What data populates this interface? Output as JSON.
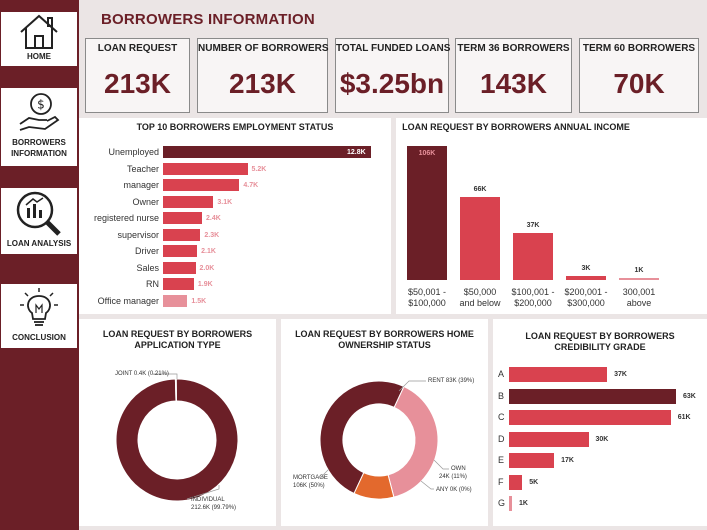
{
  "nav": {
    "home": "HOME",
    "borrowers": "BORROWERS INFORMATION",
    "loan_analysis": "LOAN ANALYSIS",
    "conclusion": "CONCLUSION"
  },
  "header": {
    "title": "BORROWERS INFORMATION"
  },
  "kpis": [
    {
      "label": "LOAN REQUEST",
      "value": "213K"
    },
    {
      "label": "NUMBER OF BORROWERS",
      "value": "213K"
    },
    {
      "label": "TOTAL FUNDED LOANS",
      "value": "$3.25bn"
    },
    {
      "label": "TERM 36 BORROWERS",
      "value": "143K"
    },
    {
      "label": "TERM 60 BORROWERS",
      "value": "70K"
    }
  ],
  "colors": {
    "dark": "#6b1f27",
    "mid": "#d9424f",
    "light": "#e7909a",
    "orange": "#e3692d",
    "sidebar": "#6b1f27"
  },
  "chart_data": [
    {
      "type": "bar",
      "orientation": "horizontal",
      "title": "TOP 10 BORROWERS EMPLOYMENT STATUS",
      "categories": [
        "Unemployed",
        "Teacher",
        "manager",
        "Owner",
        "registered nurse",
        "supervisor",
        "Driver",
        "Sales",
        "RN",
        "Office manager"
      ],
      "values": [
        12.8,
        5.2,
        4.7,
        3.1,
        2.4,
        2.3,
        2.1,
        2.0,
        1.9,
        1.5
      ],
      "labels": [
        "12.8K",
        "5.2K",
        "4.7K",
        "3.1K",
        "2.4K",
        "2.3K",
        "2.1K",
        "2.0K",
        "1.9K",
        "1.5K"
      ]
    },
    {
      "type": "bar",
      "title": "LOAN REQUEST BY BORROWERS ANNUAL INCOME",
      "categories": [
        [
          "$50,001 -",
          "$100,000"
        ],
        [
          "$50,000",
          "and below"
        ],
        [
          "$100,001 -",
          "$200,000"
        ],
        [
          "$200,001 -",
          "$300,000"
        ],
        [
          "300,001",
          "above"
        ]
      ],
      "values": [
        106,
        66,
        37,
        3,
        1
      ],
      "labels": [
        "106K",
        "66K",
        "37K",
        "3K",
        "1K"
      ]
    },
    {
      "type": "pie",
      "title_lines": [
        "LOAN REQUEST BY BORROWERS",
        "APPLICATION TYPE"
      ],
      "slices": [
        {
          "label_lines": [
            "INDIVIDUAL",
            "212.6K (99.79%)"
          ],
          "value": 99.79
        },
        {
          "label_lines": [
            "JOINT 0.4K (0.21%)"
          ],
          "value": 0.21
        }
      ]
    },
    {
      "type": "pie",
      "title_lines": [
        "LOAN REQUEST BY BORROWERS HOME",
        "OWNERSHIP STATUS"
      ],
      "slices": [
        {
          "label_lines": [
            "MORTGAGE",
            "106K (50%)"
          ],
          "value": 50
        },
        {
          "label_lines": [
            "RENT 83K (39%)"
          ],
          "value": 39
        },
        {
          "label_lines": [
            "OWN",
            "24K (11%)"
          ],
          "value": 11
        },
        {
          "label_lines": [
            "ANY 0K (0%)"
          ],
          "value": 0
        }
      ]
    },
    {
      "type": "bar",
      "orientation": "horizontal",
      "title_lines": [
        "LOAN REQUEST BY BORROWERS",
        "CREDIBILITY GRADE"
      ],
      "categories": [
        "A",
        "B",
        "C",
        "D",
        "E",
        "F",
        "G"
      ],
      "values": [
        37,
        63,
        61,
        30,
        17,
        5,
        1
      ],
      "labels": [
        "37K",
        "63K",
        "61K",
        "30K",
        "17K",
        "5K",
        "1K"
      ]
    }
  ]
}
